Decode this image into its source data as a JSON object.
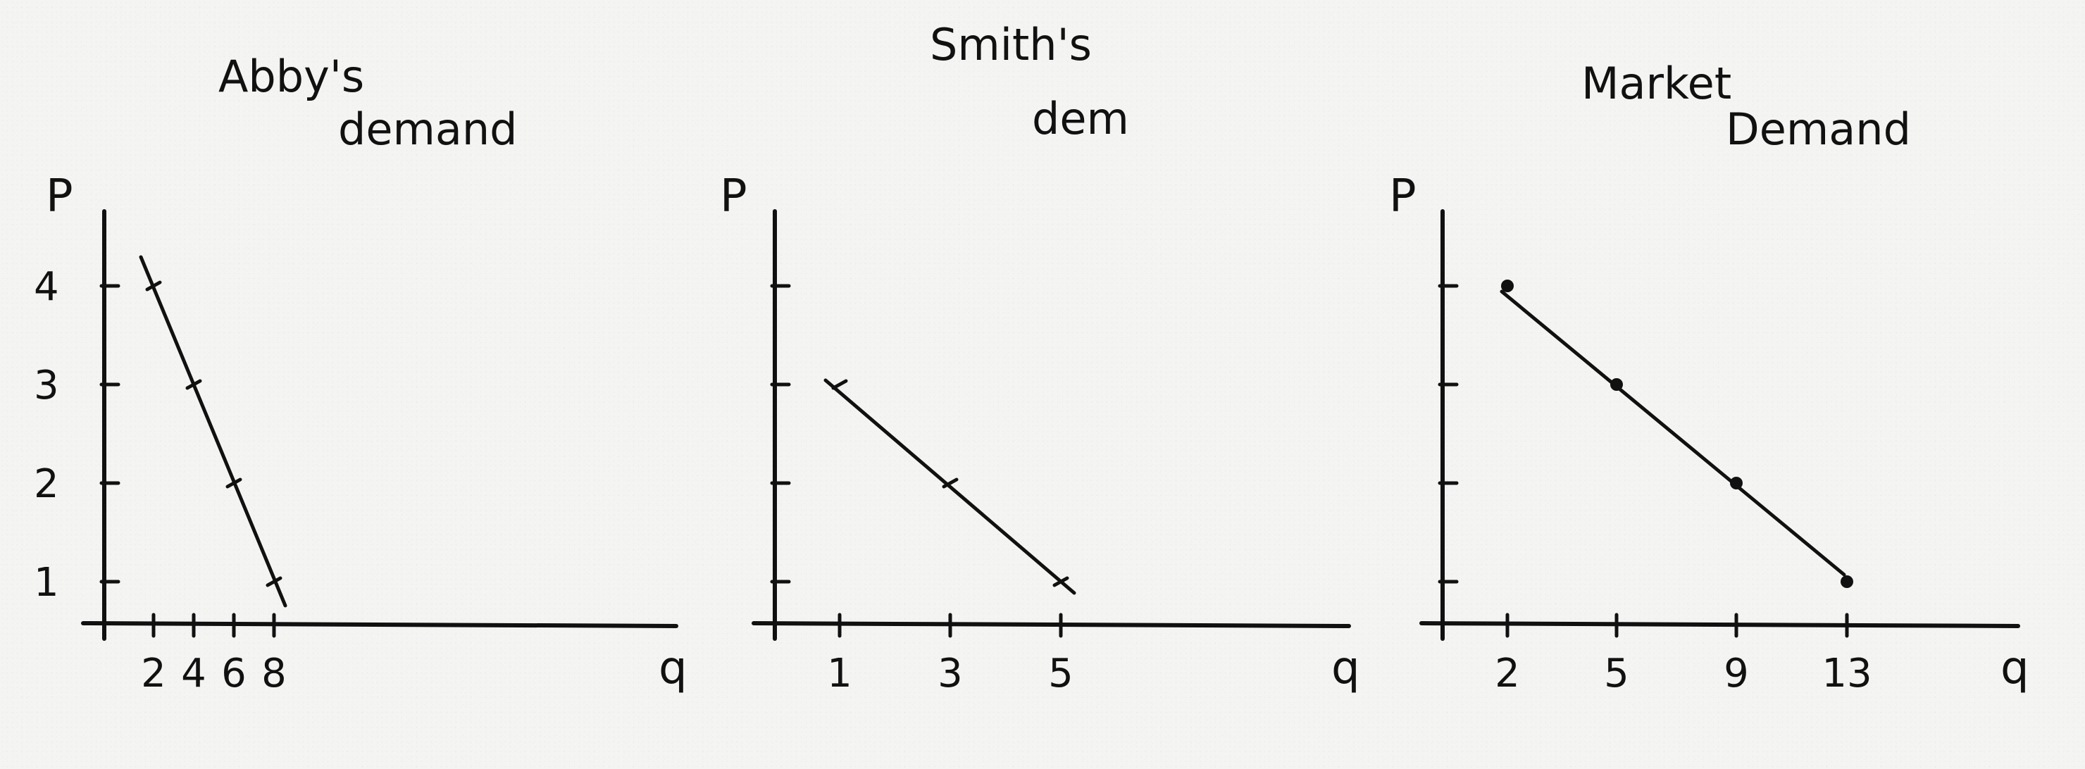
{
  "chart_data": [
    {
      "type": "line",
      "title_lines": [
        "Abby's",
        "demand"
      ],
      "xlabel": "q",
      "ylabel": "P",
      "x_tick_labels": [
        "2",
        "4",
        "6",
        "8"
      ],
      "y_tick_labels": [
        "1",
        "2",
        "3",
        "4"
      ],
      "points": [
        {
          "x": 2,
          "y": 4
        },
        {
          "x": 4,
          "y": 3
        },
        {
          "x": 6,
          "y": 2
        },
        {
          "x": 8,
          "y": 1
        }
      ]
    },
    {
      "type": "line",
      "title_lines": [
        "Smith's",
        "dem"
      ],
      "xlabel": "q",
      "ylabel": "P",
      "x_tick_labels": [
        "1",
        "3",
        "5"
      ],
      "y_tick_labels": [],
      "points": [
        {
          "x": 1,
          "y": 3
        },
        {
          "x": 3,
          "y": 2
        },
        {
          "x": 5,
          "y": 1
        }
      ]
    },
    {
      "type": "line",
      "title_lines": [
        "Market",
        "Demand"
      ],
      "xlabel": "q",
      "ylabel": "P",
      "x_tick_labels": [
        "2",
        "5",
        "9",
        "13"
      ],
      "y_tick_labels": [],
      "points": [
        {
          "x": 2,
          "y": 4
        },
        {
          "x": 5,
          "y": 3
        },
        {
          "x": 9,
          "y": 2
        },
        {
          "x": 13,
          "y": 1
        }
      ]
    }
  ]
}
